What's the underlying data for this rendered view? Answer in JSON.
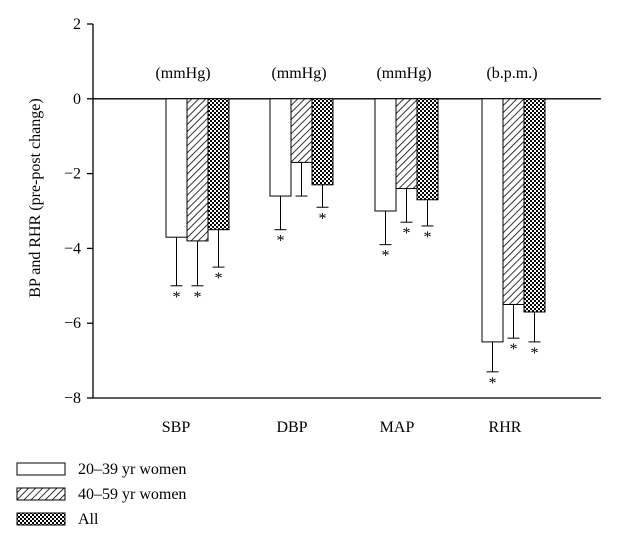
{
  "chart_data": {
    "type": "bar",
    "ylabel": "BP and RHR (pre-post change)",
    "xlabel": "",
    "title": "",
    "ylim": [
      -8,
      2
    ],
    "yticks": [
      2,
      0,
      -2,
      -4,
      -6,
      -8
    ],
    "yticklabels": [
      "2",
      "0",
      "−2",
      "−4",
      "−6",
      "−8"
    ],
    "categories": [
      "SBP",
      "DBP",
      "MAP",
      "RHR"
    ],
    "units": [
      "(mmHg)",
      "(mmHg)",
      "(mmHg)",
      "(b.p.m.)"
    ],
    "series": [
      {
        "name": "20–39 yr women",
        "pattern": "white",
        "values": [
          -3.7,
          -2.6,
          -3.0,
          -6.5
        ],
        "error": [
          1.3,
          0.9,
          0.9,
          0.8
        ],
        "significant": [
          true,
          true,
          true,
          true
        ]
      },
      {
        "name": "40–59 yr women",
        "pattern": "hatch",
        "values": [
          -3.8,
          -1.7,
          -2.4,
          -5.5
        ],
        "error": [
          1.2,
          0.9,
          0.9,
          0.9
        ],
        "significant": [
          true,
          false,
          true,
          true
        ]
      },
      {
        "name": "All",
        "pattern": "crosshatch",
        "values": [
          -3.5,
          -2.3,
          -2.7,
          -5.7
        ],
        "error": [
          1.0,
          0.6,
          0.7,
          0.8
        ],
        "significant": [
          true,
          true,
          true,
          true
        ]
      }
    ],
    "significance_marker": "*",
    "grid": false,
    "legend_position": "bottom-left"
  }
}
